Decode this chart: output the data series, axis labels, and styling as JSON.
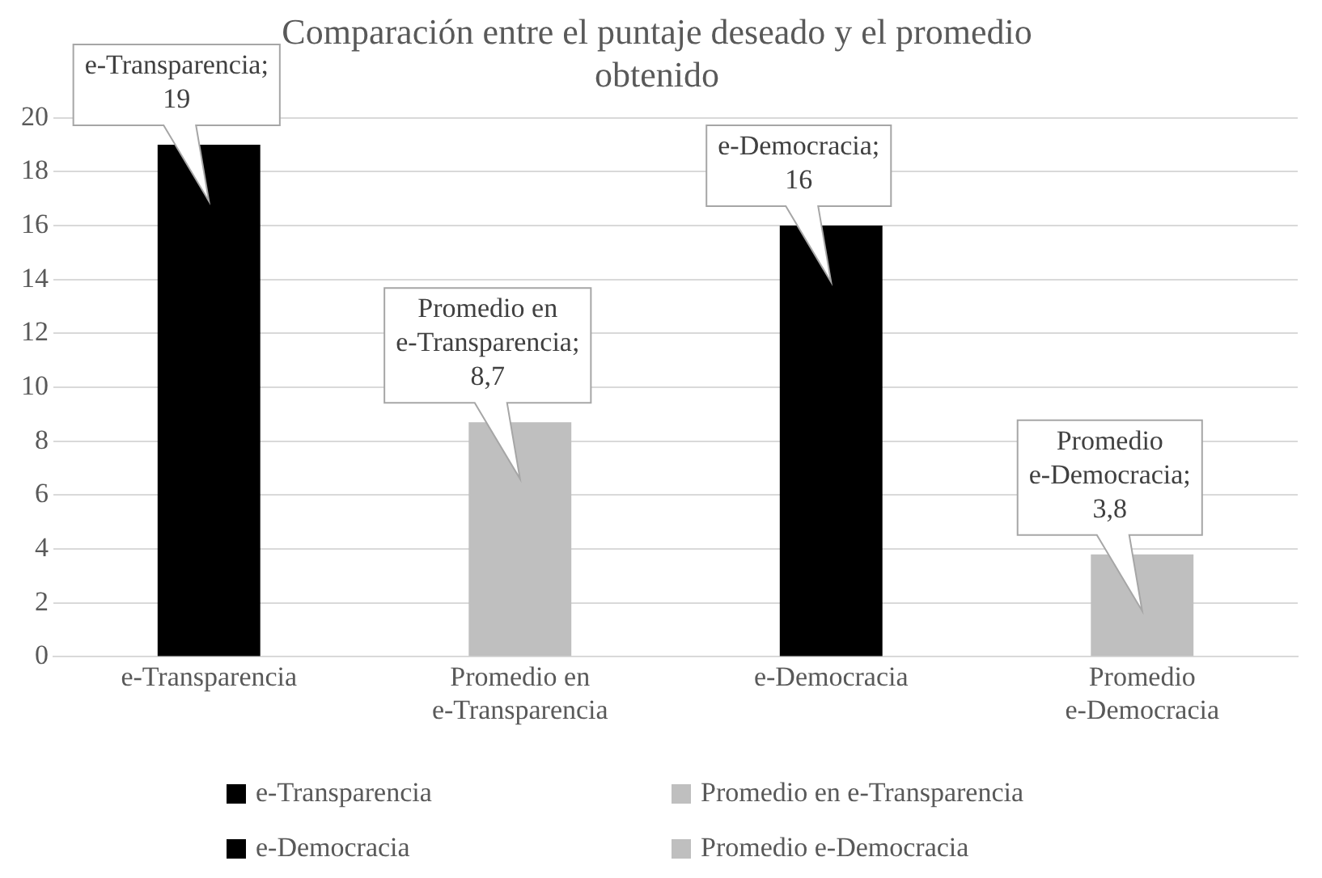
{
  "chart_data": {
    "type": "bar",
    "title": "Comparación entre el puntaje deseado y el promedio obtenido",
    "categories": [
      "e-Transparencia",
      "Promedio en e-Transparencia",
      "e-Democracia",
      "Promedio e-Democracia"
    ],
    "series": [
      {
        "name": "e-Transparencia",
        "color": "#000000",
        "values": [
          19,
          null,
          null,
          null
        ],
        "value_labels": [
          "e-Transparencia; 19",
          null,
          null,
          null
        ]
      },
      {
        "name": "Promedio en e-Transparencia",
        "color": "#bfbfbf",
        "values": [
          null,
          8.7,
          null,
          null
        ],
        "value_labels": [
          null,
          "Promedio en e-Transparencia; 8,7",
          null,
          null
        ]
      },
      {
        "name": "e-Democracia",
        "color": "#000000",
        "values": [
          null,
          null,
          16,
          null
        ],
        "value_labels": [
          null,
          null,
          "e-Democracia; 16",
          null
        ]
      },
      {
        "name": "Promedio e-Democracia",
        "color": "#bfbfbf",
        "values": [
          null,
          null,
          null,
          3.8
        ],
        "value_labels": [
          null,
          null,
          null,
          "Promedio e-Democracia; 3,8"
        ]
      }
    ],
    "ylim": [
      0,
      20
    ],
    "yticks": [
      0,
      2,
      4,
      6,
      8,
      10,
      12,
      14,
      16,
      18,
      20
    ],
    "grid": "y",
    "legend": "bottom"
  }
}
